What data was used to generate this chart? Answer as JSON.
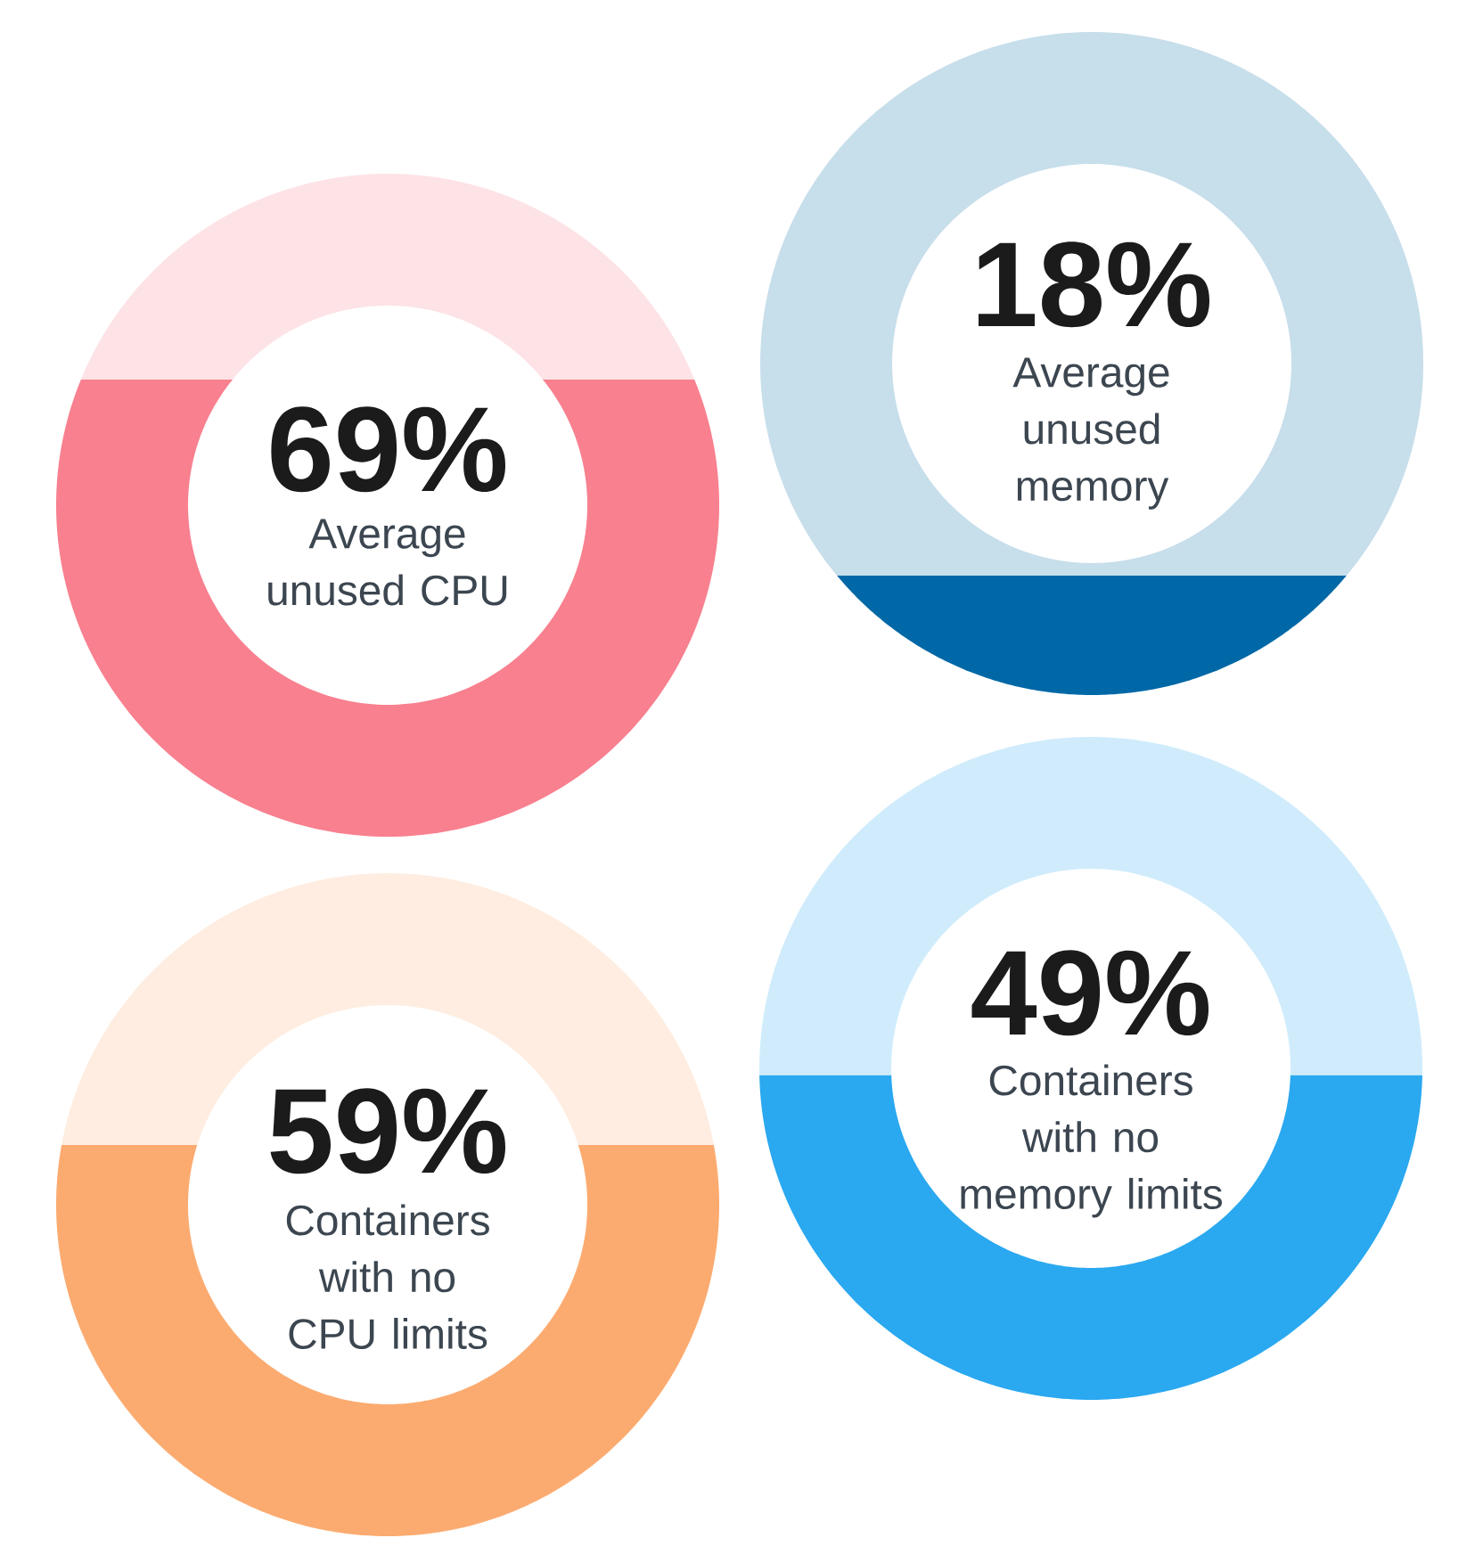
{
  "chart_data": [
    {
      "type": "other",
      "categories": [
        "Average unused CPU"
      ],
      "values": [
        69
      ],
      "value_labels": [
        "69%"
      ],
      "color": "#f8808f"
    },
    {
      "type": "other",
      "categories": [
        "Average unused memory"
      ],
      "values": [
        18
      ],
      "value_labels": [
        "18%"
      ],
      "color": "#0068a6"
    },
    {
      "type": "other",
      "categories": [
        "Containers with no CPU limits"
      ],
      "values": [
        59
      ],
      "value_labels": [
        "59%"
      ],
      "color": "#fcab70"
    },
    {
      "type": "other",
      "categories": [
        "Containers with no memory limits"
      ],
      "values": [
        49
      ],
      "value_labels": [
        "49%"
      ],
      "color": "#2aa8f0"
    }
  ]
}
